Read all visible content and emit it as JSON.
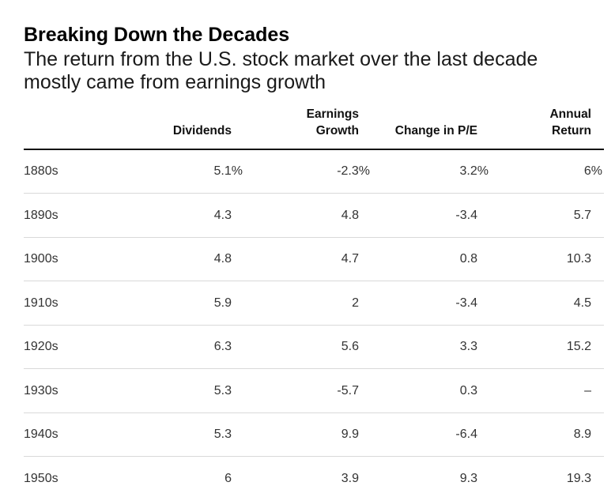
{
  "title": "Breaking Down the Decades",
  "subtitle": "The return from the U.S. stock market over the last decade mostly came from earnings growth",
  "chart_data": {
    "type": "table",
    "title": "Breaking Down the Decades",
    "subtitle": "The return from the U.S. stock market over the last decade mostly came from earnings growth",
    "columns": [
      "",
      "Dividends",
      "Earnings Growth",
      "Change in P/E",
      "Annual Return"
    ],
    "rows": [
      {
        "decade": "1880s",
        "dividends": "5.1%",
        "earnings_growth": "-2.3%",
        "change_in_pe": "3.2%",
        "annual_return": "6%"
      },
      {
        "decade": "1890s",
        "dividends": "4.3",
        "earnings_growth": "4.8",
        "change_in_pe": "-3.4",
        "annual_return": "5.7"
      },
      {
        "decade": "1900s",
        "dividends": "4.8",
        "earnings_growth": "4.7",
        "change_in_pe": "0.8",
        "annual_return": "10.3"
      },
      {
        "decade": "1910s",
        "dividends": "5.9",
        "earnings_growth": "2",
        "change_in_pe": "-3.4",
        "annual_return": "4.5"
      },
      {
        "decade": "1920s",
        "dividends": "6.3",
        "earnings_growth": "5.6",
        "change_in_pe": "3.3",
        "annual_return": "15.2"
      },
      {
        "decade": "1930s",
        "dividends": "5.3",
        "earnings_growth": "-5.7",
        "change_in_pe": "0.3",
        "annual_return": "–"
      },
      {
        "decade": "1940s",
        "dividends": "5.3",
        "earnings_growth": "9.9",
        "change_in_pe": "-6.4",
        "annual_return": "8.9"
      },
      {
        "decade": "1950s",
        "dividends": "6",
        "earnings_growth": "3.9",
        "change_in_pe": "9.3",
        "annual_return": "19.3"
      }
    ]
  }
}
